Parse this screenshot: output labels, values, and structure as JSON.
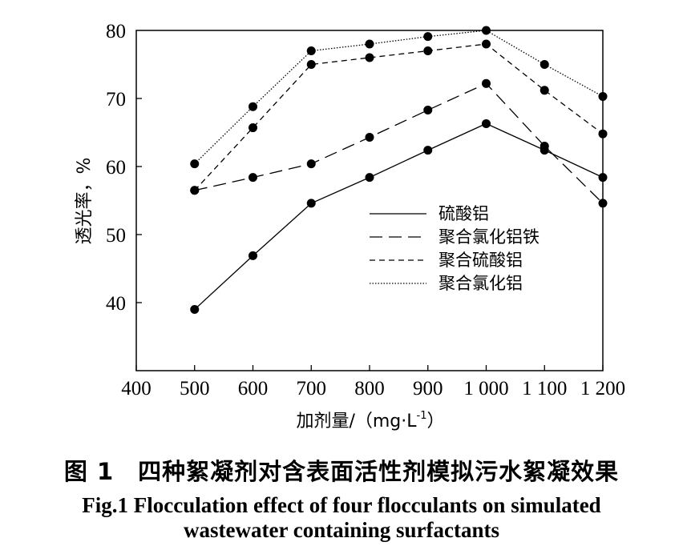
{
  "chart_data": {
    "type": "line",
    "xlabel": "加剂量/（mg·L",
    "xlabel_sup": "-1",
    "xlabel_close": "）",
    "ylabel": "透光率，%",
    "xlim": [
      400,
      1200
    ],
    "ylim": [
      30,
      80
    ],
    "x_ticks": [
      400,
      500,
      600,
      700,
      800,
      900,
      1000,
      1100,
      1200
    ],
    "x_tick_labels": [
      "400",
      "500",
      "600",
      "700",
      "800",
      "900",
      "1 000",
      "1 100",
      "1 200"
    ],
    "y_ticks": [
      40,
      50,
      60,
      70,
      80
    ],
    "y_tick_labels": [
      "40",
      "50",
      "60",
      "70",
      "80"
    ],
    "grid": false,
    "legend_position": "center-right",
    "x": [
      500,
      600,
      700,
      800,
      900,
      1000,
      1100,
      1200
    ],
    "series": [
      {
        "name": "硫酸铝",
        "dash": "solid",
        "values": [
          39.0,
          46.9,
          54.6,
          58.4,
          62.4,
          66.3,
          62.4,
          58.4
        ]
      },
      {
        "name": "聚合氯化铝铁",
        "dash": "longdash",
        "values": [
          56.5,
          58.4,
          60.4,
          64.3,
          68.3,
          72.2,
          63.0,
          54.6
        ]
      },
      {
        "name": "聚合硫酸铝",
        "dash": "dashed",
        "values": [
          56.5,
          65.7,
          75.0,
          76.0,
          77.0,
          78.0,
          71.2,
          64.8
        ]
      },
      {
        "name": "聚合氯化铝",
        "dash": "dotted",
        "values": [
          60.4,
          68.8,
          77.0,
          78.0,
          79.1,
          80.0,
          75.0,
          70.3
        ]
      }
    ]
  },
  "caption": {
    "zh": "图 1　四种絮凝剂对含表面活性剂模拟污水絮凝效果",
    "en": "Fig.1 Flocculation effect of four flocculants on simulated wastewater containing surfactants"
  }
}
